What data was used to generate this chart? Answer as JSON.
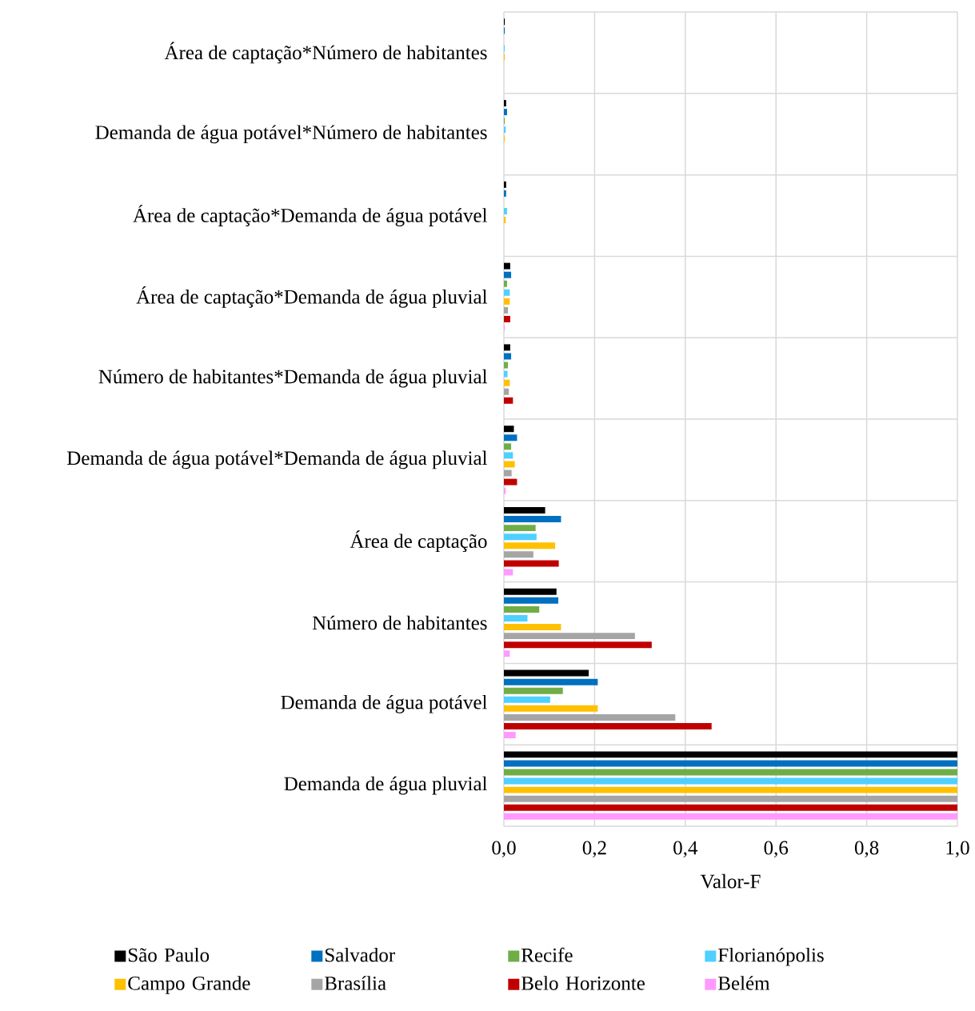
{
  "chart_data": {
    "type": "bar",
    "orientation": "horizontal",
    "categories": [
      "Área de captação*Número de habitantes",
      "Demanda de água potável*Número de habitantes",
      "Área de captação*Demanda de água potável",
      "Área de captação*Demanda de água pluvial",
      "Número de habitantes*Demanda de água pluvial",
      "Demanda de água potável*Demanda de água pluvial",
      "Área de captação",
      "Número de habitantes",
      "Demanda de água potável",
      "Demanda de água pluvial"
    ],
    "series": [
      {
        "name": "São Paulo",
        "color": "#000000",
        "values": [
          0.002,
          0.005,
          0.005,
          0.014,
          0.014,
          0.022,
          0.091,
          0.116,
          0.187,
          1.0
        ]
      },
      {
        "name": "Salvador",
        "color": "#0070c0",
        "values": [
          0.002,
          0.007,
          0.005,
          0.016,
          0.016,
          0.029,
          0.126,
          0.12,
          0.207,
          1.0
        ]
      },
      {
        "name": "Recife",
        "color": "#70ad47",
        "values": [
          0,
          0.002,
          0,
          0.007,
          0.009,
          0.016,
          0.07,
          0.078,
          0.13,
          1.0
        ]
      },
      {
        "name": "Florianópolis",
        "color": "#4fd0ff",
        "values": [
          0.002,
          0.004,
          0.007,
          0.013,
          0.008,
          0.02,
          0.072,
          0.052,
          0.102,
          1.0
        ]
      },
      {
        "name": "Campo Grande",
        "color": "#ffc000",
        "values": [
          0.002,
          0.002,
          0.004,
          0.013,
          0.013,
          0.024,
          0.113,
          0.126,
          0.207,
          1.0
        ]
      },
      {
        "name": "Brasília",
        "color": "#a5a5a5",
        "values": [
          0,
          0,
          0,
          0.009,
          0.011,
          0.017,
          0.065,
          0.289,
          0.378,
          1.0
        ]
      },
      {
        "name": "Belo Horizonte",
        "color": "#c00000",
        "values": [
          0,
          0,
          0,
          0.014,
          0.02,
          0.029,
          0.121,
          0.326,
          0.458,
          1.0
        ]
      },
      {
        "name": "Belém",
        "color": "#ff99ff",
        "values": [
          0,
          0,
          0,
          0.002,
          0,
          0.004,
          0.02,
          0.013,
          0.026,
          1.0
        ]
      }
    ],
    "xlabel": "Valor-F",
    "xlim": [
      0,
      1.0
    ],
    "xticks": [
      {
        "value": 0,
        "label": "0,0"
      },
      {
        "value": 0.2,
        "label": "0,2"
      },
      {
        "value": 0.4,
        "label": "0,4"
      },
      {
        "value": 0.6,
        "label": "0,6"
      },
      {
        "value": 0.8,
        "label": "0,8"
      },
      {
        "value": 1.0,
        "label": "1,0"
      }
    ],
    "grid": true,
    "legend": "bottom"
  }
}
